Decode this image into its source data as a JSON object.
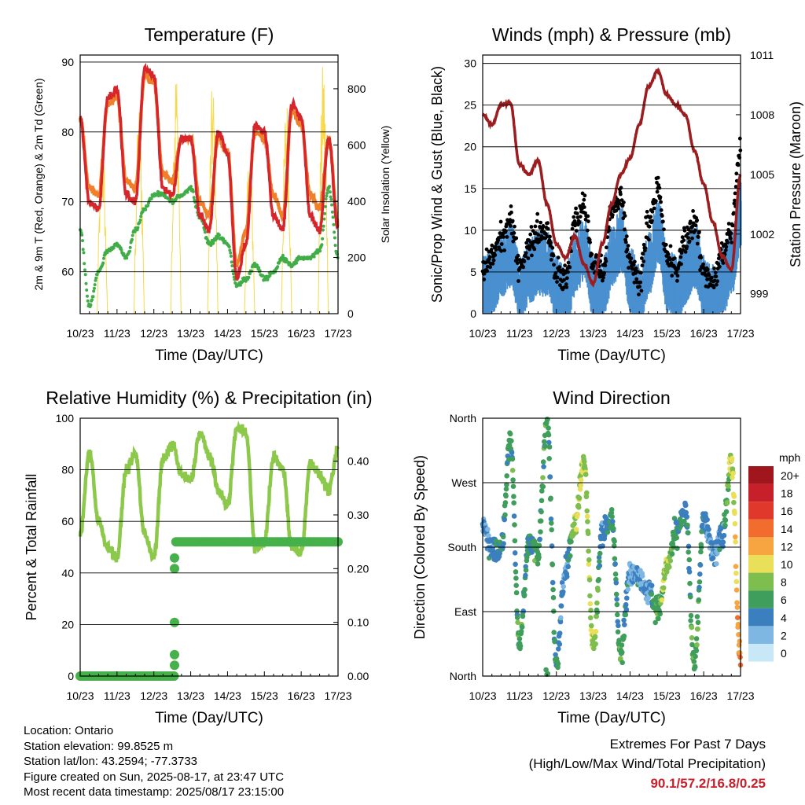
{
  "x_tick_labels": [
    "10/23",
    "11/23",
    "12/23",
    "13/23",
    "14/23",
    "15/23",
    "16/23",
    "17/23"
  ],
  "panels": {
    "temperature": {
      "title": "Temperature (F)",
      "xlabel": "Time (Day/UTC)",
      "ylabel_left": "2m & 9m T (Red, Orange) & 2m Td (Green)",
      "ylabel_right": "Solar Insolation (Yellow)",
      "left_ticks": [
        "60",
        "70",
        "80",
        "90"
      ],
      "right_ticks": [
        "0",
        "200",
        "400",
        "600",
        "800"
      ]
    },
    "winds": {
      "title": "Winds (mph) & Pressure (mb)",
      "xlabel": "Time (Day/UTC)",
      "ylabel_left": "Sonic/Prop Wind & Gust (Blue, Black)",
      "ylabel_right": "Station Pressure (Maroon)",
      "left_ticks": [
        "0",
        "5",
        "10",
        "15",
        "20",
        "25",
        "30"
      ],
      "right_ticks": [
        "999",
        "1002",
        "1005",
        "1008",
        "1011"
      ]
    },
    "humidity": {
      "title": "Relative Humidity (%) & Precipitation (in)",
      "xlabel": "Time (Day/UTC)",
      "ylabel_left": "Percent & Total Rainfall",
      "left_ticks": [
        "0",
        "20",
        "40",
        "60",
        "80",
        "100"
      ],
      "right_ticks": [
        "0.00",
        "0.10",
        "0.20",
        "0.30",
        "0.40"
      ]
    },
    "wind_direction": {
      "title": "Wind Direction",
      "xlabel": "Time (Day/UTC)",
      "ylabel_left": "Direction (Colored By Speed)",
      "left_ticks": [
        "North",
        "East",
        "South",
        "West",
        "North"
      ],
      "legend_title": "mph",
      "legend_labels": [
        "20+",
        "18",
        "16",
        "14",
        "12",
        "10",
        "8",
        "6",
        "4",
        "2",
        "0"
      ],
      "legend_colors": [
        "#a0161c",
        "#c8202a",
        "#e0392b",
        "#f26c2e",
        "#f7a541",
        "#e9df58",
        "#7dbe4f",
        "#3f9e5b",
        "#3c7fbf",
        "#7eb7e2",
        "#c9e8f7"
      ]
    }
  },
  "chart_data": [
    {
      "type": "line",
      "title": "Temperature (F)",
      "xlabel": "Time (Day/UTC)",
      "ylabel": "2m & 9m T (Red, Orange) & 2m Td (Green)",
      "y2label": "Solar Insolation (Yellow)",
      "x": [
        10.0,
        10.25,
        10.5,
        10.75,
        11.0,
        11.25,
        11.5,
        11.75,
        12.0,
        12.25,
        12.5,
        12.75,
        13.0,
        13.25,
        13.5,
        13.75,
        14.0,
        14.25,
        14.5,
        14.75,
        15.0,
        15.25,
        15.5,
        15.75,
        16.0,
        16.25,
        16.5,
        16.75,
        17.0
      ],
      "series": [
        {
          "name": "2m T",
          "color": "#d7262b",
          "axis": "left",
          "values": [
            82,
            70,
            69,
            85,
            86,
            71,
            70,
            89,
            88,
            72,
            71,
            79,
            79,
            68,
            66,
            80,
            77,
            59,
            64,
            81,
            80,
            68,
            66,
            84,
            82,
            68,
            66,
            79,
            66
          ]
        },
        {
          "name": "9m T",
          "color": "#f07f2a",
          "axis": "left",
          "values": [
            82,
            72,
            71,
            84,
            85,
            73,
            72,
            88,
            87,
            74,
            73,
            79,
            79,
            70,
            68,
            79,
            77,
            61,
            66,
            80,
            79,
            71,
            68,
            83,
            81,
            71,
            69,
            79,
            67
          ]
        },
        {
          "name": "2m Td",
          "color": "#40ad48",
          "axis": "left",
          "values": [
            66,
            55,
            60,
            63,
            64,
            62,
            66,
            69,
            71,
            71,
            70,
            71,
            72,
            68,
            64,
            65,
            64,
            58,
            59,
            61,
            59,
            60,
            62,
            61,
            62,
            62,
            63,
            72,
            62
          ]
        },
        {
          "name": "Solar Insolation",
          "color": "#f6d84a",
          "axis": "right",
          "peaks_at": [
            10.6,
            11.6,
            12.6,
            13.6,
            14.6,
            15.6,
            16.6
          ],
          "peak_values": [
            650,
            760,
            900,
            840,
            600,
            790,
            910
          ]
        }
      ],
      "ylim": [
        54,
        91
      ],
      "y2lim": [
        0,
        920
      ],
      "grid": true
    },
    {
      "type": "scatter",
      "title": "Winds (mph) & Pressure (mb)",
      "xlabel": "Time (Day/UTC)",
      "ylabel": "Sonic/Prop Wind & Gust (Blue, Black)",
      "y2label": "Station Pressure (Maroon)",
      "x": [
        10.0,
        10.25,
        10.5,
        10.75,
        11.0,
        11.25,
        11.5,
        11.75,
        12.0,
        12.25,
        12.5,
        12.75,
        13.0,
        13.25,
        13.5,
        13.75,
        14.0,
        14.25,
        14.5,
        14.75,
        15.0,
        15.25,
        15.5,
        15.75,
        16.0,
        16.25,
        16.5,
        16.75,
        17.0
      ],
      "series": [
        {
          "name": "Sonic/Prop Wind",
          "color": "#4a90d0",
          "axis": "left",
          "values": [
            3,
            4,
            6,
            7,
            3,
            5,
            6,
            6,
            3,
            2,
            6,
            8,
            3,
            3,
            7,
            9,
            4,
            2,
            6,
            10,
            4,
            3,
            5,
            7,
            3,
            2,
            4,
            6,
            12
          ]
        },
        {
          "name": "Gust",
          "color": "#000000",
          "axis": "left",
          "values": [
            5,
            7,
            9,
            11,
            6,
            8,
            10,
            10,
            5,
            4,
            11,
            13,
            6,
            5,
            12,
            14,
            6,
            4,
            11,
            15,
            7,
            5,
            9,
            11,
            5,
            4,
            7,
            10,
            20
          ]
        },
        {
          "name": "Station Pressure",
          "color": "#9b1d20",
          "axis": "right",
          "values": [
            1008.0,
            1007.5,
            1008.5,
            1008.6,
            1005.5,
            1005.0,
            1005.7,
            1003.5,
            1001.5,
            1000.8,
            1001.9,
            1000.5,
            999.5,
            1001.5,
            1003.5,
            1005.0,
            1005.8,
            1007.5,
            1009.4,
            1010.2,
            1009.0,
            1008.5,
            1008.0,
            1006.2,
            1004.5,
            1002.6,
            1000.9,
            1000.2,
            1005.0
          ]
        }
      ],
      "ylim": [
        0,
        31
      ],
      "y2lim": [
        998,
        1011
      ],
      "grid": true
    },
    {
      "type": "line",
      "title": "Relative Humidity (%) & Precipitation (in)",
      "xlabel": "Time (Day/UTC)",
      "ylabel": "Percent & Total Rainfall",
      "x": [
        10.0,
        10.25,
        10.5,
        10.75,
        11.0,
        11.25,
        11.5,
        11.75,
        12.0,
        12.25,
        12.5,
        12.75,
        13.0,
        13.25,
        13.5,
        13.75,
        14.0,
        14.25,
        14.5,
        14.75,
        15.0,
        15.25,
        15.5,
        15.75,
        16.0,
        16.25,
        16.5,
        16.75,
        17.0
      ],
      "series": [
        {
          "name": "Relative Humidity",
          "color": "#8cc84a",
          "axis": "left",
          "values": [
            55,
            87,
            60,
            50,
            46,
            80,
            86,
            55,
            46,
            84,
            90,
            78,
            76,
            94,
            86,
            72,
            66,
            96,
            95,
            50,
            52,
            85,
            80,
            50,
            48,
            83,
            78,
            72,
            88
          ]
        },
        {
          "name": "Total Precipitation",
          "color": "#46b04a",
          "axis": "right",
          "values": [
            0.0,
            0.0,
            0.0,
            0.0,
            0.0,
            0.0,
            0.0,
            0.0,
            0.0,
            0.0,
            0.25,
            0.25,
            0.25,
            0.25,
            0.25,
            0.25,
            0.25,
            0.25,
            0.25,
            0.25,
            0.25,
            0.25,
            0.25,
            0.25,
            0.25,
            0.25,
            0.25,
            0.25,
            0.25
          ]
        }
      ],
      "ylim": [
        0,
        100
      ],
      "y2lim": [
        0,
        0.48
      ],
      "grid": true
    },
    {
      "type": "scatter",
      "title": "Wind Direction",
      "xlabel": "Time (Day/UTC)",
      "ylabel": "Direction (Colored By Speed)",
      "y_categories": [
        "North",
        "East",
        "South",
        "West",
        "North"
      ],
      "x": [
        10.0,
        10.25,
        10.5,
        10.75,
        11.0,
        11.25,
        11.5,
        11.75,
        12.0,
        12.25,
        12.5,
        12.75,
        13.0,
        13.25,
        13.5,
        13.75,
        14.0,
        14.25,
        14.5,
        14.75,
        15.0,
        15.25,
        15.5,
        15.75,
        16.0,
        16.25,
        16.5,
        16.75,
        17.0
      ],
      "series": [
        {
          "name": "Direction (deg)",
          "values": [
            210,
            180,
            175,
            330,
            45,
            185,
            175,
            360,
            20,
            150,
            210,
            300,
            40,
            200,
            220,
            30,
            150,
            140,
            120,
            90,
            150,
            200,
            230,
            20,
            220,
            170,
            200,
            300,
            20
          ]
        },
        {
          "name": "Speed (mph)",
          "values": [
            3,
            4,
            5,
            6,
            6,
            5,
            6,
            6,
            5,
            3,
            9,
            9,
            9,
            4,
            5,
            6,
            3,
            3,
            3,
            7,
            9,
            5,
            4,
            7,
            4,
            3,
            4,
            9,
            13
          ]
        }
      ],
      "ylim": [
        0,
        360
      ],
      "grid": true
    }
  ],
  "footer": {
    "location": "Location: Ontario",
    "elevation": "Station elevation: 99.8525 m",
    "latlon": "Station lat/lon: 43.2594; -77.3733",
    "created": "Figure created on Sun, 2025-08-17, at 23:47 UTC",
    "timestamp": "Most recent data timestamp: 2025/08/17 23:15:00",
    "extremes_title": "Extremes For Past 7 Days",
    "extremes_subtitle": "(High/Low/Max Wind/Total Precipitation)",
    "extremes_value": "90.1/57.2/16.8/0.25"
  }
}
